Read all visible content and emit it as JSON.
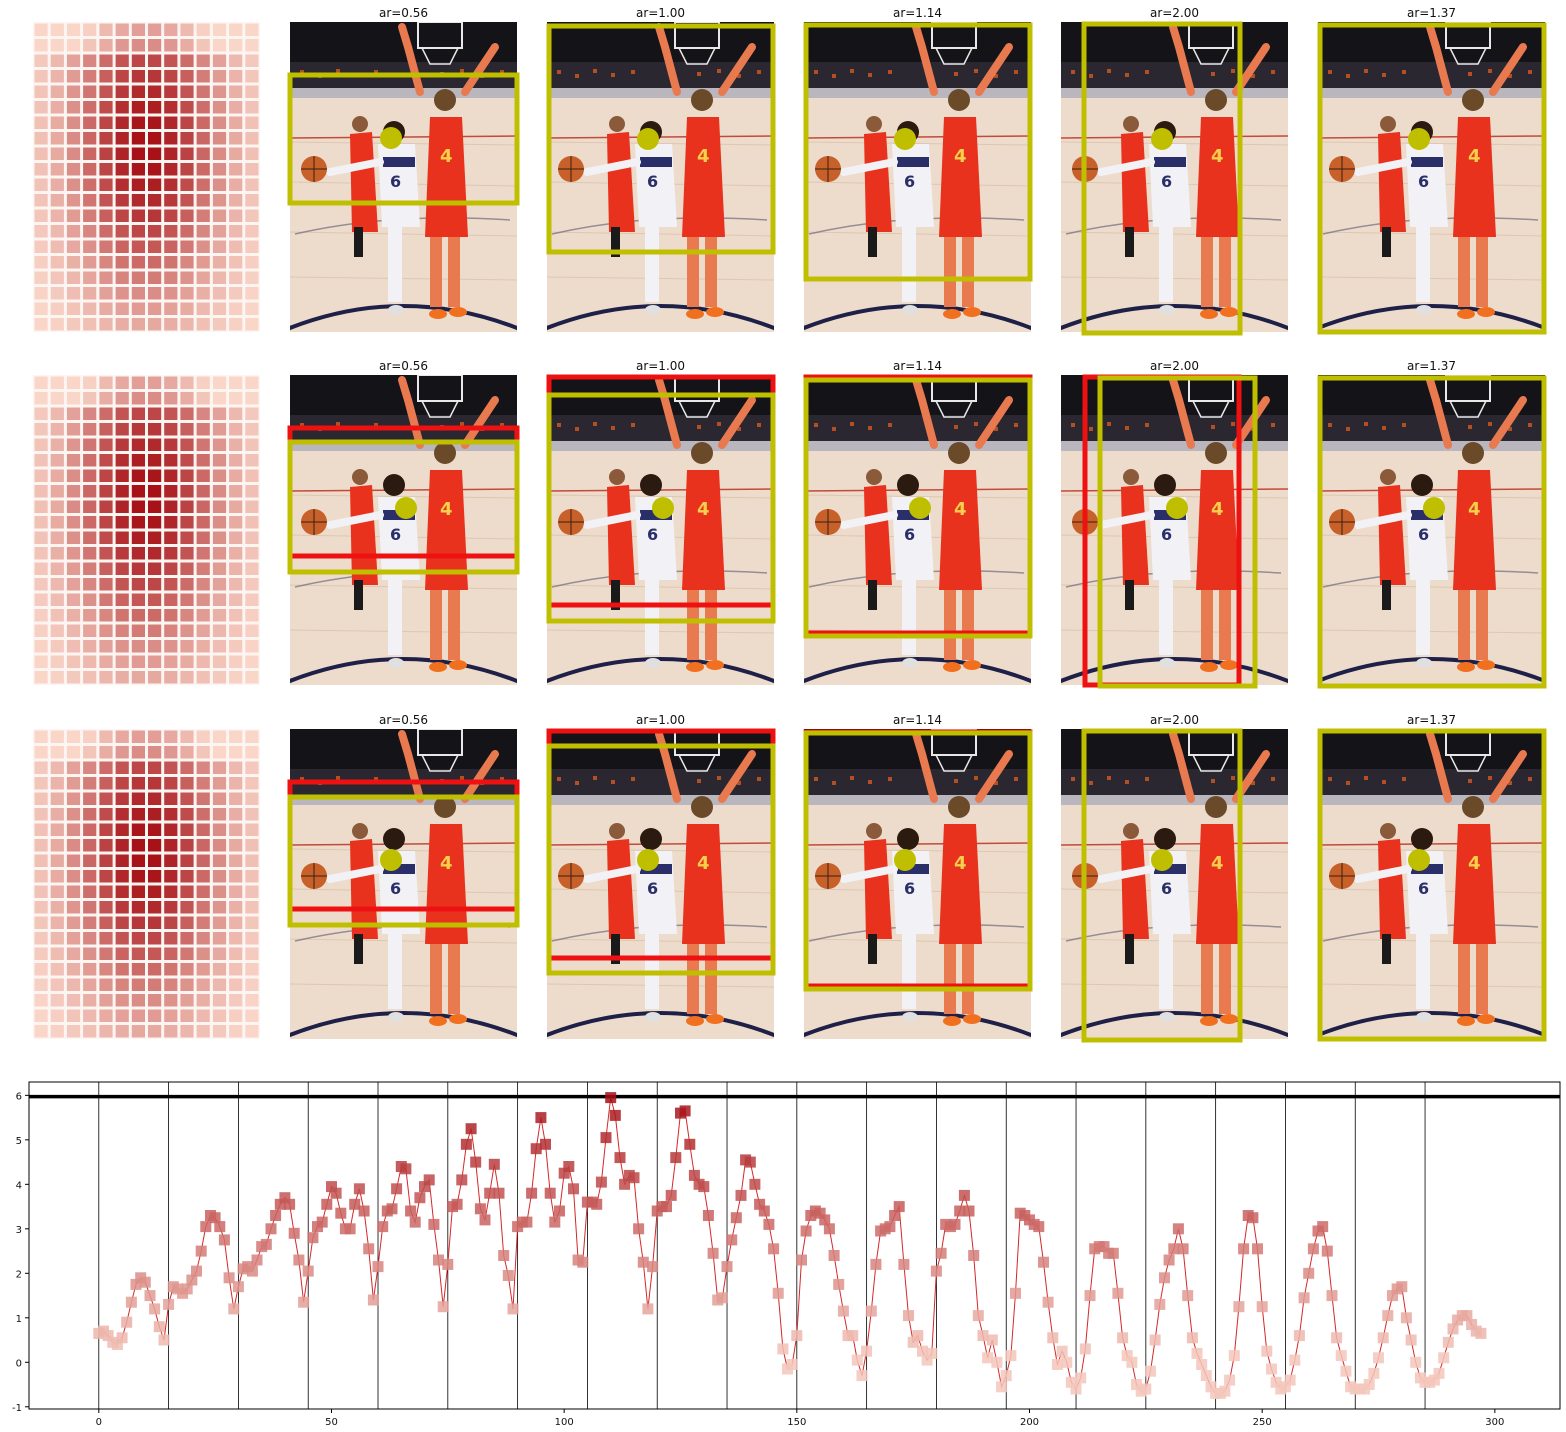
{
  "theme": {
    "heat_low": "#fee0d2",
    "heat_high": "#a50f15",
    "line_color": "#d62728",
    "pred_box": "#bfbf00",
    "gt_box": "#ee1111",
    "point_color": "#bfbf00",
    "jersey_usa": "#f2f2f6",
    "jersey_esp": "#e8321d"
  },
  "panels": {
    "rows": [
      {
        "cells": [
          {
            "type": "heatmap"
          },
          {
            "title": "ar=0.56",
            "pred": true,
            "gt": false
          },
          {
            "title": "ar=1.00",
            "pred": true,
            "gt": false
          },
          {
            "title": "ar=1.14",
            "pred": true,
            "gt": false
          },
          {
            "title": "ar=2.00",
            "pred": true,
            "gt": false
          },
          {
            "title": "ar=1.37",
            "pred": true,
            "gt": false
          }
        ]
      },
      {
        "cells": [
          {
            "type": "heatmap"
          },
          {
            "title": "ar=0.56",
            "pred": true,
            "gt": true
          },
          {
            "title": "ar=1.00",
            "pred": true,
            "gt": true
          },
          {
            "title": "ar=1.14",
            "pred": true,
            "gt": true
          },
          {
            "title": "ar=2.00",
            "pred": true,
            "gt": true
          },
          {
            "title": "ar=1.37",
            "pred": true,
            "gt": false
          }
        ]
      },
      {
        "cells": [
          {
            "type": "heatmap"
          },
          {
            "title": "ar=0.56",
            "pred": true,
            "gt": true
          },
          {
            "title": "ar=1.00",
            "pred": true,
            "gt": true
          },
          {
            "title": "ar=1.14",
            "pred": true,
            "gt": true
          },
          {
            "title": "ar=2.00",
            "pred": true,
            "gt": false
          },
          {
            "title": "ar=1.37",
            "pred": true,
            "gt": false
          }
        ]
      }
    ]
  },
  "chart_data": {
    "type": "line",
    "title": "",
    "xlabel": "",
    "ylabel": "",
    "xlim": [
      -15,
      314
    ],
    "ylim": [
      -1.05,
      6.3
    ],
    "xticks": [
      0,
      50,
      100,
      150,
      200,
      250,
      300
    ],
    "xtick_labels": [
      "0",
      "50",
      "100",
      "150",
      "200",
      "250",
      "300"
    ],
    "yticks": [
      -1,
      0,
      1,
      2,
      3,
      4,
      5,
      6
    ],
    "ytick_labels": [
      "-1",
      "0",
      "1",
      "2",
      "3",
      "4",
      "5",
      "6"
    ],
    "hline": 5.97,
    "vlines": [
      0,
      15,
      30,
      45,
      60,
      75,
      90,
      105,
      120,
      135,
      150,
      165,
      180,
      195,
      210,
      225,
      240,
      255,
      270,
      285
    ],
    "marker": "square",
    "grid": false,
    "series": [
      {
        "values": [
          0.65,
          0.7,
          0.6,
          0.45,
          0.4,
          0.55,
          0.9,
          1.35,
          1.75,
          1.9,
          1.8,
          1.5,
          1.2,
          0.8,
          0.5,
          1.3,
          1.7,
          1.65,
          1.55,
          1.65,
          1.85,
          2.05,
          2.5,
          3.05,
          3.3,
          3.25,
          3.05,
          2.75,
          1.9,
          1.2,
          1.7,
          2.1,
          2.15,
          2.05,
          2.3,
          2.6,
          2.65,
          3.0,
          3.3,
          3.55,
          3.7,
          3.55,
          2.9,
          2.3,
          1.35,
          2.05,
          2.8,
          3.05,
          3.15,
          3.55,
          3.95,
          3.8,
          3.35,
          3.0,
          3.0,
          3.55,
          3.9,
          3.4,
          2.55,
          1.4,
          2.15,
          3.05,
          3.4,
          3.45,
          3.9,
          4.4,
          4.35,
          3.4,
          3.15,
          3.7,
          3.95,
          4.1,
          3.1,
          2.3,
          1.25,
          2.2,
          3.5,
          3.55,
          4.1,
          4.9,
          5.25,
          4.5,
          3.45,
          3.2,
          3.8,
          4.45,
          3.8,
          2.4,
          1.95,
          1.2,
          3.05,
          3.15,
          3.15,
          3.8,
          4.8,
          5.5,
          4.9,
          3.8,
          3.15,
          3.4,
          4.25,
          4.4,
          3.9,
          2.3,
          2.25,
          3.6,
          3.6,
          3.55,
          4.05,
          5.05,
          5.95,
          5.55,
          4.6,
          4.0,
          4.2,
          4.15,
          3.0,
          2.25,
          1.2,
          2.15,
          3.4,
          3.5,
          3.5,
          3.75,
          4.6,
          5.6,
          5.65,
          4.9,
          4.2,
          4.0,
          3.95,
          3.3,
          2.45,
          1.4,
          1.45,
          2.15,
          2.75,
          3.25,
          3.75,
          4.55,
          4.5,
          4.0,
          3.55,
          3.4,
          3.1,
          2.55,
          1.55,
          0.3,
          -0.15,
          -0.05,
          0.6,
          2.3,
          2.95,
          3.3,
          3.4,
          3.35,
          3.2,
          3.0,
          2.4,
          1.75,
          1.15,
          0.6,
          0.6,
          0.05,
          -0.3,
          0.25,
          1.15,
          2.2,
          2.95,
          3.0,
          3.05,
          3.3,
          3.5,
          2.2,
          1.05,
          0.45,
          0.6,
          0.25,
          0.05,
          0.2,
          2.05,
          2.45,
          3.1,
          3.05,
          3.1,
          3.4,
          3.75,
          3.4,
          2.4,
          1.05,
          0.6,
          0.1,
          0.5,
          0.0,
          -0.55,
          -0.3,
          0.15,
          1.55,
          3.35,
          3.3,
          3.2,
          3.1,
          3.05,
          2.25,
          1.35,
          0.55,
          -0.05,
          0.25,
          0.0,
          -0.45,
          -0.6,
          -0.35,
          0.3,
          1.5,
          2.55,
          2.6,
          2.6,
          2.45,
          2.45,
          1.55,
          0.55,
          0.15,
          0.0,
          -0.5,
          -0.65,
          -0.6,
          -0.2,
          0.5,
          1.3,
          1.9,
          2.3,
          2.55,
          3.0,
          2.55,
          1.5,
          0.55,
          0.2,
          -0.05,
          -0.3,
          -0.55,
          -0.7,
          -0.7,
          -0.65,
          -0.4,
          0.15,
          1.25,
          2.55,
          3.3,
          3.25,
          2.55,
          1.25,
          0.25,
          -0.15,
          -0.45,
          -0.6,
          -0.55,
          -0.4,
          0.05,
          0.6,
          1.45,
          2.0,
          2.55,
          2.95,
          3.05,
          2.5,
          1.5,
          0.55,
          0.15,
          -0.2,
          -0.55,
          -0.6,
          -0.6,
          -0.6,
          -0.5,
          -0.25,
          0.1,
          0.55,
          1.05,
          1.5,
          1.65,
          1.7,
          1.0,
          0.5,
          0.0,
          -0.35,
          -0.45,
          -0.45,
          -0.4,
          -0.25,
          0.1,
          0.45,
          0.75,
          0.95,
          1.05,
          1.05,
          0.85,
          0.7,
          0.65
        ]
      }
    ]
  }
}
